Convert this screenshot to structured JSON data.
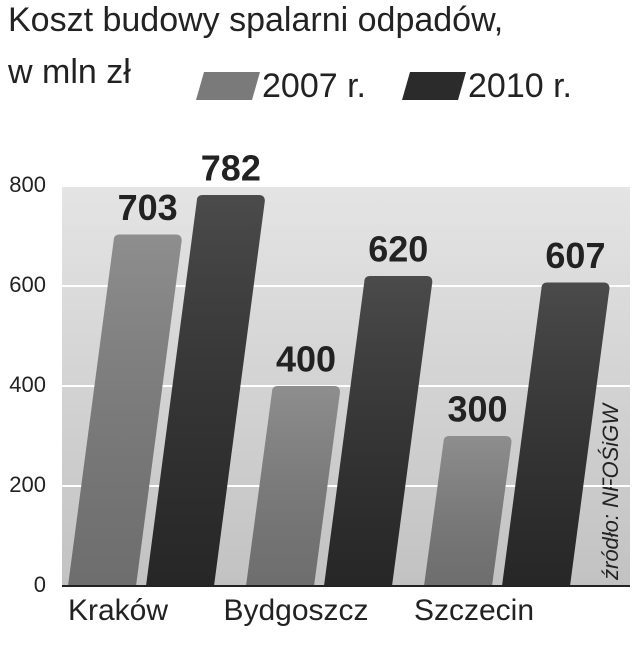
{
  "chart_data": {
    "type": "bar",
    "title": "Koszt budowy spalarni odpadów,",
    "subtitle": "w mln zł",
    "source": "źródło: NFOŚiGW",
    "categories": [
      "Kraków",
      "Bydgoszcz",
      "Szczecin"
    ],
    "series": [
      {
        "name": "2007 r.",
        "color": "#7a7a7a",
        "values": [
          703,
          400,
          300
        ]
      },
      {
        "name": "2010 r.",
        "color": "#2b2b2b",
        "values": [
          782,
          620,
          607
        ]
      }
    ],
    "ylim": [
      0,
      800
    ],
    "yticks": [
      0,
      200,
      400,
      600,
      800
    ],
    "grid": true
  }
}
